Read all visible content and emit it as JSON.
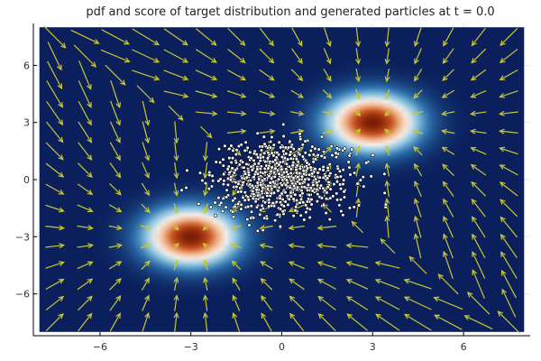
{
  "chart_data": {
    "type": "heatmap",
    "title": "pdf and score of target distribution and generated particles at t = 0.0",
    "xlabel": "",
    "ylabel": "",
    "xlim": [
      -8.2,
      8.2
    ],
    "ylim": [
      -8.2,
      8.2
    ],
    "heatmap_extent": {
      "x": [
        -8,
        8
      ],
      "y": [
        -8,
        8
      ]
    },
    "x_ticks": [
      -6,
      -3,
      0,
      3,
      6
    ],
    "y_ticks": [
      -6,
      -3,
      0,
      3,
      6
    ],
    "x_tick_labels": [
      "−6",
      "−3",
      "0",
      "3",
      "6"
    ],
    "y_tick_labels": [
      "−6",
      "−3",
      "0",
      "3",
      "6"
    ],
    "grid": true,
    "colormap": [
      "#0a1f5c",
      "#2b6ca8",
      "#8cc5e3",
      "#f4f0ea",
      "#f3b48a",
      "#c4501c",
      "#7a1c06"
    ],
    "pdf": {
      "description_label": "target distribution pdf",
      "components": [
        {
          "mean": [
            3,
            3
          ],
          "std": 1.0,
          "weight": 0.5
        },
        {
          "mean": [
            -3,
            -3
          ],
          "std": 1.0,
          "weight": 0.5
        }
      ]
    },
    "score_field": {
      "arrow_color": "#c8c832",
      "grid_x": [
        -7.5,
        -6.5,
        -5.5,
        -4.5,
        -3.5,
        -2.5,
        -1.5,
        -0.5,
        0.5,
        1.5,
        2.5,
        3.5,
        4.5,
        5.5,
        6.5,
        7.5
      ],
      "grid_y": [
        -7.5,
        -6.5,
        -5.5,
        -4.5,
        -3.5,
        -2.5,
        -1.5,
        -0.5,
        0.5,
        1.5,
        2.5,
        3.5,
        4.5,
        5.5,
        6.5,
        7.5
      ]
    },
    "particles": {
      "count": 900,
      "mean": [
        0,
        0
      ],
      "std": [
        1.1,
        0.95
      ],
      "fill": "#ffffff",
      "stroke": "#000000",
      "seed": 7
    }
  }
}
